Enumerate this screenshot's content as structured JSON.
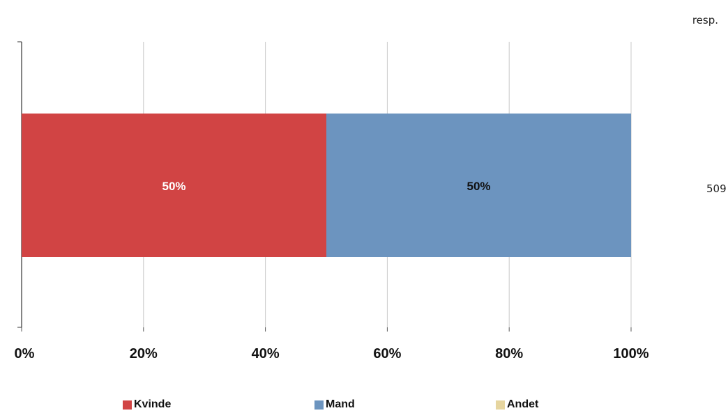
{
  "header": {
    "resp_label": "resp."
  },
  "chart_data": {
    "type": "bar",
    "orientation": "horizontal",
    "stacked": true,
    "xlim": [
      0,
      100
    ],
    "x_ticks": [
      "0%",
      "20%",
      "40%",
      "60%",
      "80%",
      "100%"
    ],
    "grid": true,
    "legend_position": "bottom",
    "series": [
      {
        "name": "Kvinde",
        "values": [
          50
        ],
        "label": "50%",
        "color": "#d14444",
        "label_color": "#ffffff"
      },
      {
        "name": "Mand",
        "values": [
          50
        ],
        "label": "50%",
        "color": "#6c94bf",
        "label_color": "#111111"
      },
      {
        "name": "Andet",
        "values": [
          0
        ],
        "label": "",
        "color": "#e6d59f",
        "label_color": "#111111"
      }
    ],
    "respondents": "509"
  }
}
